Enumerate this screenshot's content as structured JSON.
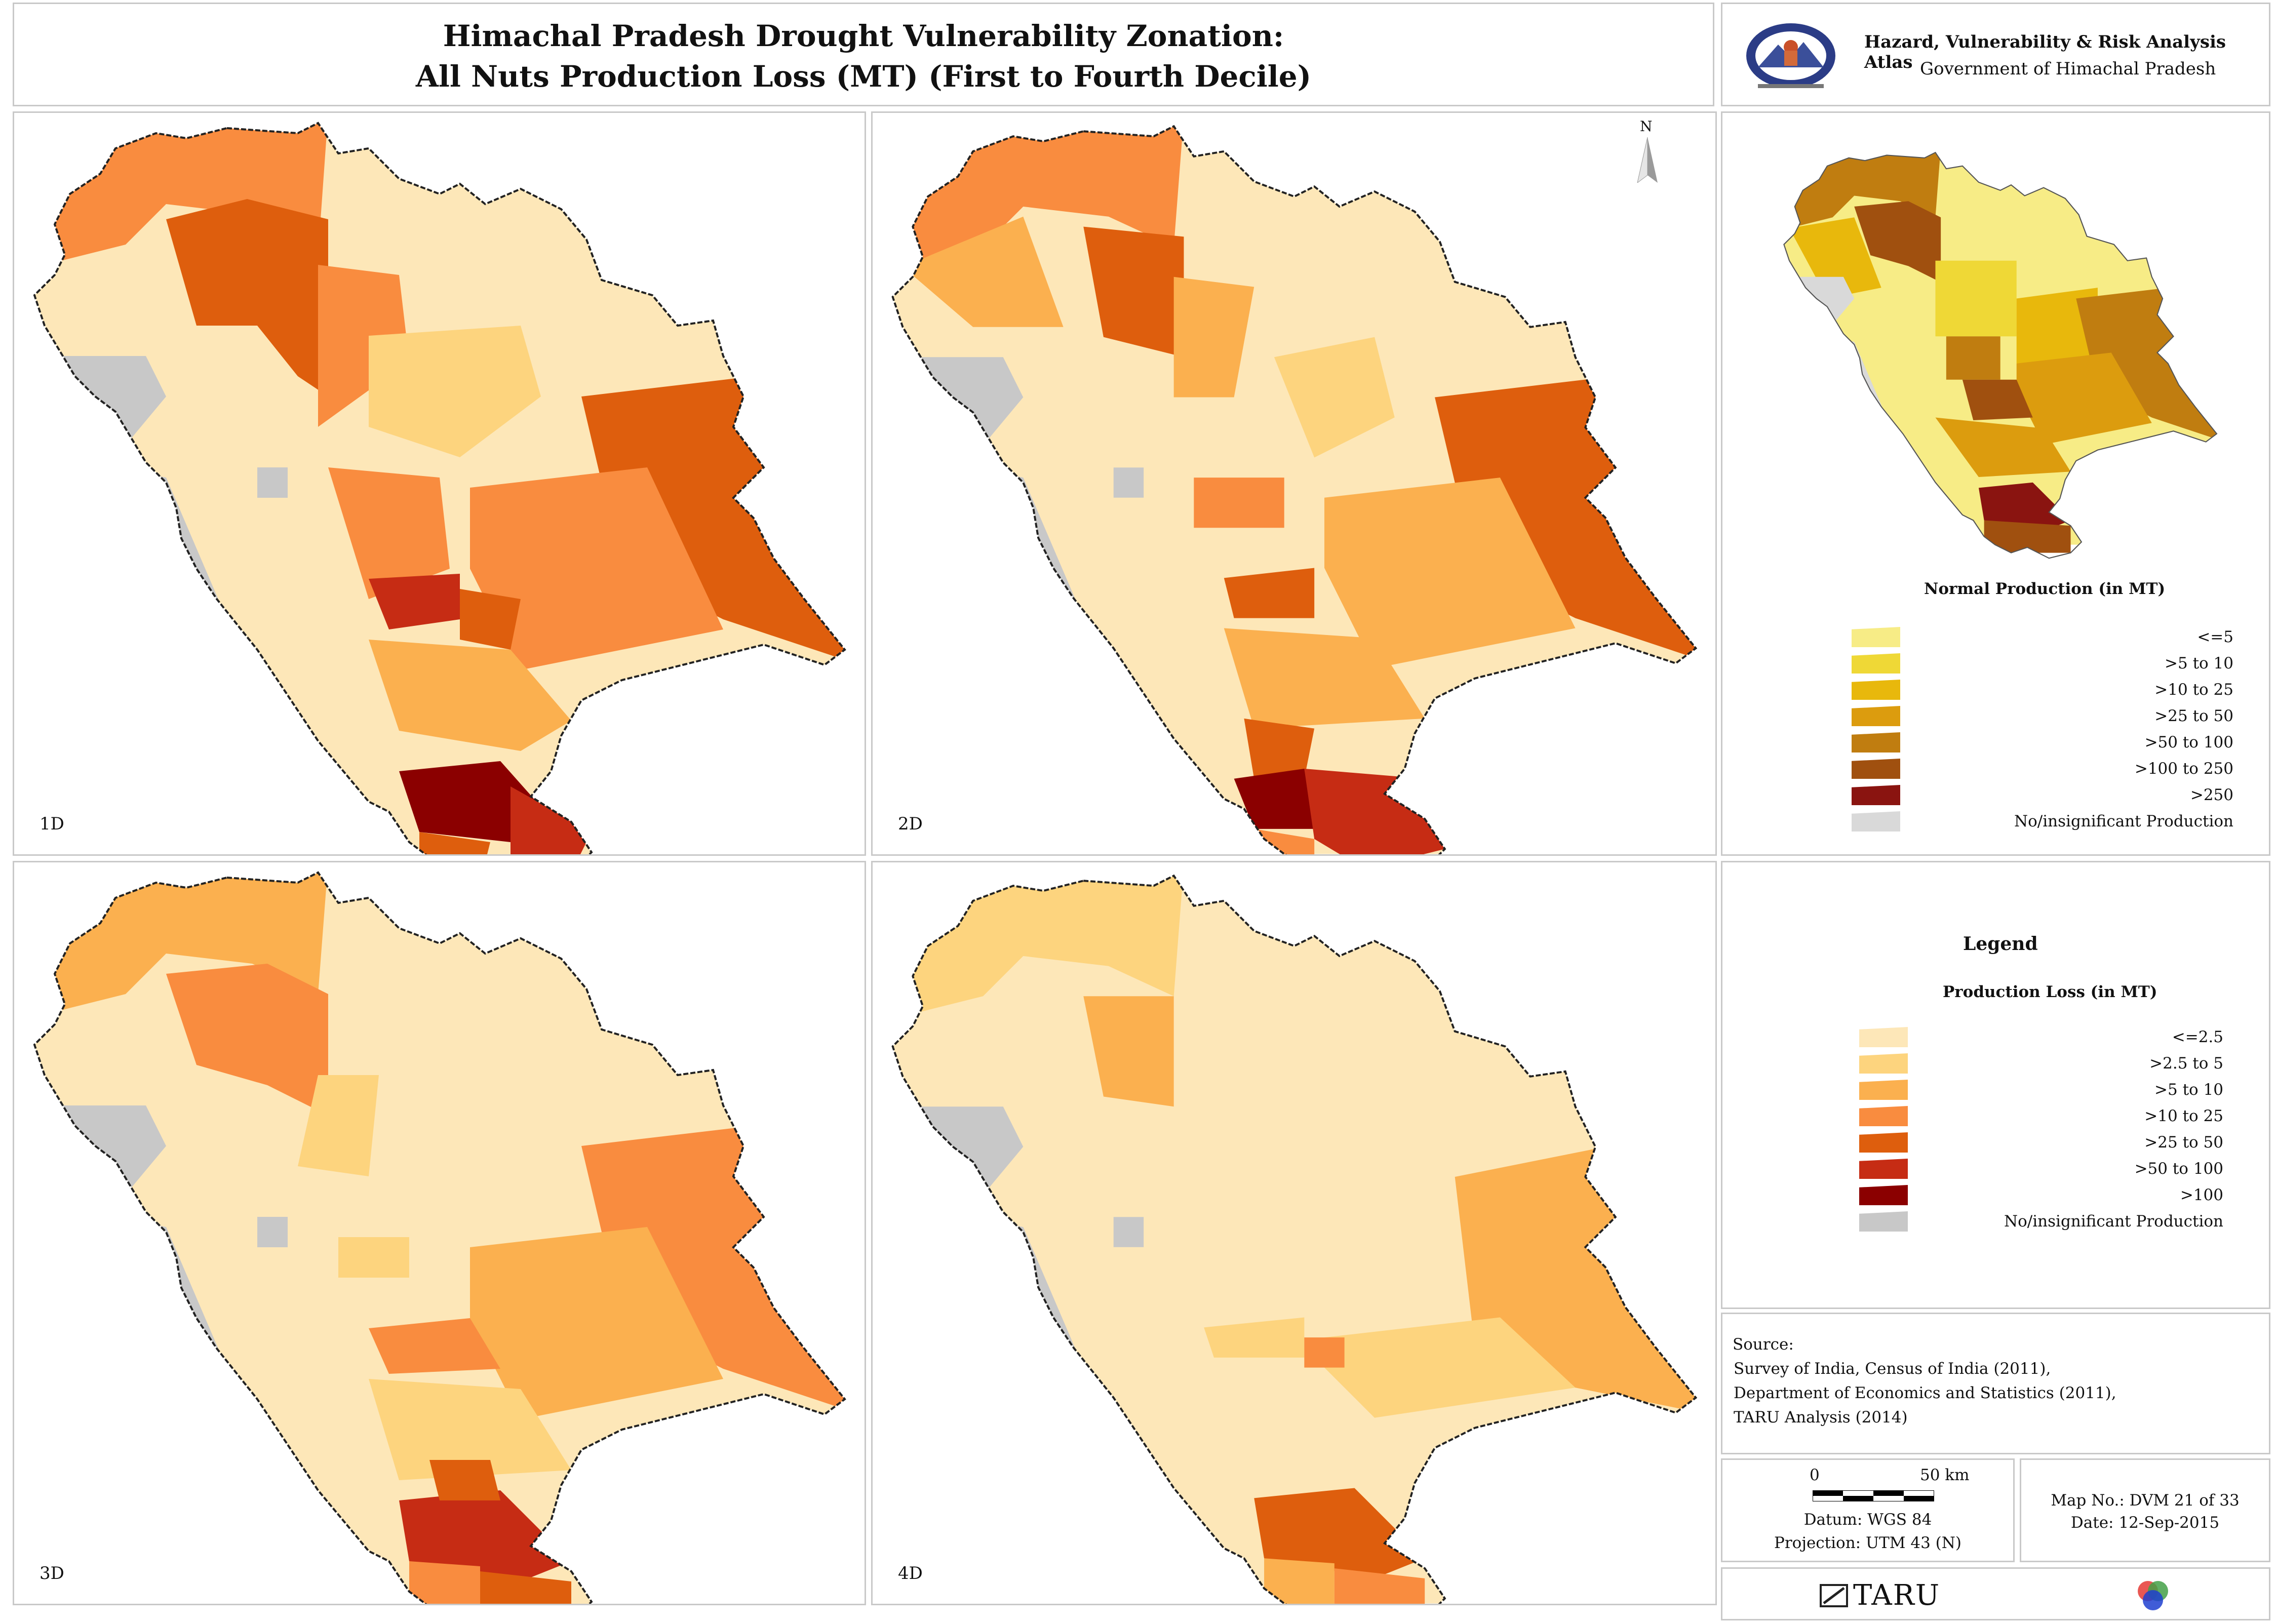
{
  "header": {
    "title_line1": "Himachal Pradesh Drought Vulnerability Zonation:",
    "title_line2": "All Nuts Production Loss (MT) (First to Fourth Decile)"
  },
  "atlas": {
    "name": "Hazard, Vulnerability & Risk Analysis Atlas",
    "government": "Government of Himachal Pradesh"
  },
  "maps": [
    {
      "label": "1D"
    },
    {
      "label": "2D"
    },
    {
      "label": "3D"
    },
    {
      "label": "4D"
    }
  ],
  "north_arrow": "N",
  "normal_production_legend": {
    "title": "Normal Production (in MT)",
    "items": [
      {
        "label": "<=5",
        "color": "#f7ec86"
      },
      {
        "label": ">5 to 10",
        "color": "#efd836"
      },
      {
        "label": ">10 to 25",
        "color": "#e8b80c"
      },
      {
        "label": ">25 to 50",
        "color": "#dc9c0e"
      },
      {
        "label": ">50 to 100",
        "color": "#c07d10"
      },
      {
        "label": ">100 to 250",
        "color": "#a0500f"
      },
      {
        "label": ">250",
        "color": "#8a1410"
      },
      {
        "label": "No/insignificant Production",
        "color": "#d9d9d9"
      }
    ]
  },
  "loss_legend": {
    "heading": "Legend",
    "title": "Production Loss (in MT)",
    "items": [
      {
        "label": "<=2.5",
        "color": "#fde7b8"
      },
      {
        "label": ">2.5 to 5",
        "color": "#fdd47e"
      },
      {
        "label": ">5 to 10",
        "color": "#fbb04f"
      },
      {
        "label": ">10 to 25",
        "color": "#f98c3f"
      },
      {
        "label": ">25 to 50",
        "color": "#de5e0d"
      },
      {
        "label": ">50 to 100",
        "color": "#c62c14"
      },
      {
        "label": ">100",
        "color": "#8b0000"
      },
      {
        "label": "No/insignificant Production",
        "color": "#c8c8c8"
      }
    ]
  },
  "source": {
    "heading": "Source:",
    "lines": [
      "Survey of India, Census of India (2011),",
      "Department of Economics and Statistics (2011),",
      "TARU Analysis (2014)"
    ]
  },
  "scale": {
    "zero": "0",
    "max": "50 km",
    "datum": "Datum: WGS 84",
    "projection": "Projection: UTM 43 (N)"
  },
  "map_info": {
    "map_no": "Map No.: DVM 21 of 33",
    "date": "Date: 12-Sep-2015"
  },
  "footer": {
    "brand": "TARU"
  }
}
